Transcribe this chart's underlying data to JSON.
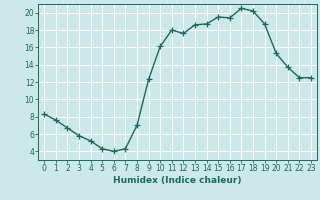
{
  "x": [
    0,
    1,
    2,
    3,
    4,
    5,
    6,
    7,
    8,
    9,
    10,
    11,
    12,
    13,
    14,
    15,
    16,
    17,
    18,
    19,
    20,
    21,
    22,
    23
  ],
  "y": [
    8.3,
    7.6,
    6.7,
    5.8,
    5.2,
    4.3,
    4.0,
    4.3,
    7.0,
    12.3,
    16.1,
    18.0,
    17.6,
    18.6,
    18.7,
    19.5,
    19.4,
    20.5,
    20.2,
    18.7,
    15.3,
    13.7,
    12.5,
    12.5
  ],
  "line_color": "#1a6b5a",
  "marker": "+",
  "marker_size": 4,
  "bg_color": "#cce8e8",
  "grid_color": "#ffffff",
  "xlabel": "Humidex (Indice chaleur)",
  "xlim": [
    -0.5,
    23.5
  ],
  "ylim": [
    3,
    21
  ],
  "yticks": [
    4,
    6,
    8,
    10,
    12,
    14,
    16,
    18,
    20
  ],
  "xticks": [
    0,
    1,
    2,
    3,
    4,
    5,
    6,
    7,
    8,
    9,
    10,
    11,
    12,
    13,
    14,
    15,
    16,
    17,
    18,
    19,
    20,
    21,
    22,
    23
  ],
  "tick_fontsize": 5.5,
  "label_fontsize": 6.5
}
